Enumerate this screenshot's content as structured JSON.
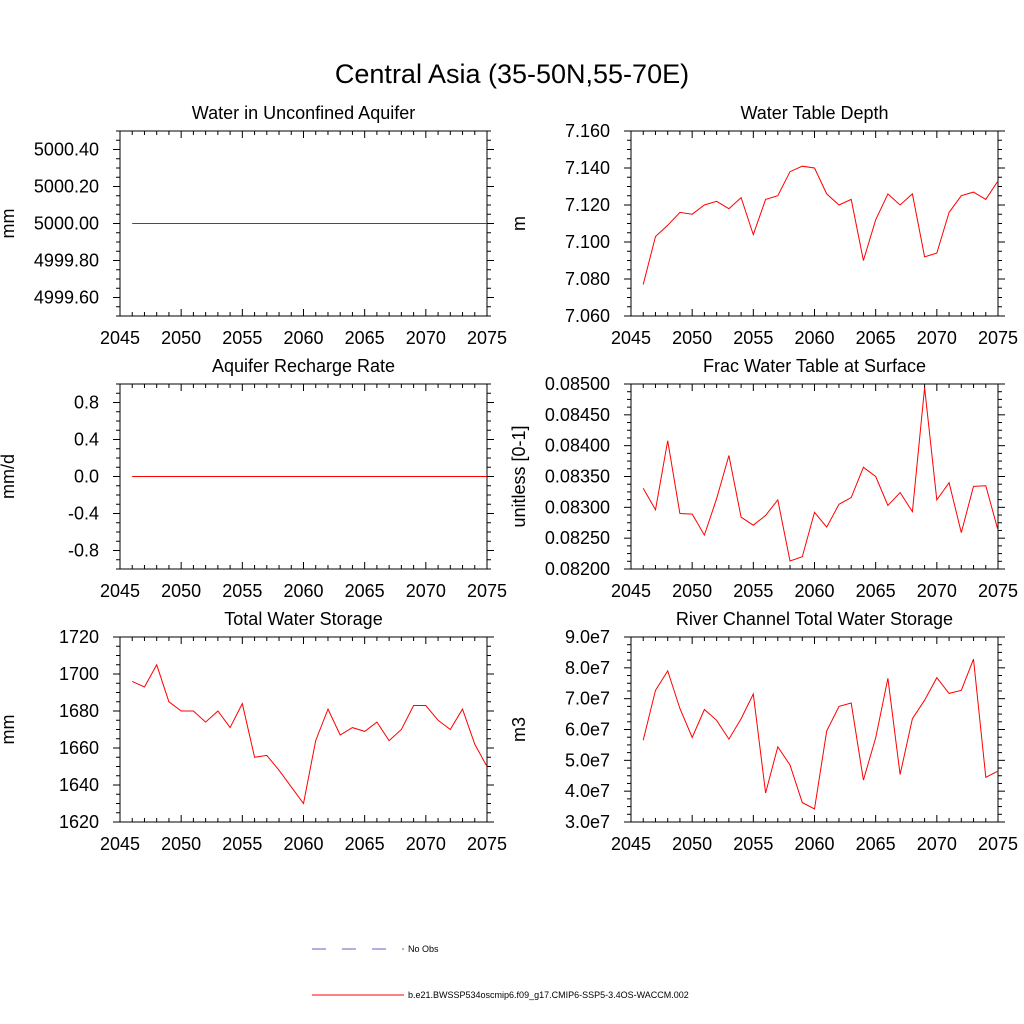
{
  "figure_title": "Central Asia (35-50N,55-70E)",
  "colors": {
    "model_line": "#ff0000",
    "obs_line": "#6060c0",
    "axis": "#000000",
    "background": "#ffffff"
  },
  "legend": {
    "obs_label": "No Obs",
    "model_label": "b.e21.BWSSP534oscmip6.f09_g17.CMIP6-SSP5-3.4OS-WACCM.002"
  },
  "chart_data": [
    {
      "type": "line",
      "title": "Water in Unconfined Aquifer",
      "ylabel": "mm",
      "xlim": [
        2045,
        2075
      ],
      "ylim": [
        4999.5,
        5000.5
      ],
      "xticks": [
        2045,
        2050,
        2055,
        2060,
        2065,
        2070,
        2075
      ],
      "yticks": [
        4999.6,
        4999.8,
        5000.0,
        5000.2,
        5000.4
      ],
      "ytick_labels": [
        "4999.60",
        "4999.80",
        "5000.00",
        "5000.20",
        "5000.40"
      ],
      "x": [
        2046,
        2075
      ],
      "series": [
        {
          "values": [
            5000.0,
            5000.0
          ]
        }
      ]
    },
    {
      "type": "line",
      "title": "Water Table Depth",
      "ylabel": "m",
      "xlim": [
        2045,
        2075
      ],
      "ylim": [
        7.06,
        7.16
      ],
      "xticks": [
        2045,
        2050,
        2055,
        2060,
        2065,
        2070,
        2075
      ],
      "yticks": [
        7.06,
        7.08,
        7.1,
        7.12,
        7.14,
        7.16
      ],
      "ytick_labels": [
        "7.060",
        "7.080",
        "7.100",
        "7.120",
        "7.140",
        "7.160"
      ],
      "x": [
        2046,
        2047,
        2048,
        2049,
        2050,
        2051,
        2052,
        2053,
        2054,
        2055,
        2056,
        2057,
        2058,
        2059,
        2060,
        2061,
        2062,
        2063,
        2064,
        2065,
        2066,
        2067,
        2068,
        2069,
        2070,
        2071,
        2072,
        2073,
        2074,
        2075
      ],
      "series": [
        {
          "values": [
            7.077,
            7.103,
            7.109,
            7.116,
            7.115,
            7.12,
            7.122,
            7.118,
            7.124,
            7.104,
            7.123,
            7.125,
            7.138,
            7.141,
            7.14,
            7.126,
            7.12,
            7.123,
            7.09,
            7.112,
            7.126,
            7.12,
            7.126,
            7.092,
            7.094,
            7.116,
            7.125,
            7.127,
            7.123,
            7.133
          ]
        }
      ]
    },
    {
      "type": "line",
      "title": "Aquifer Recharge Rate",
      "ylabel": "mm/d",
      "xlim": [
        2045,
        2075
      ],
      "ylim": [
        -1.0,
        1.0
      ],
      "xticks": [
        2045,
        2050,
        2055,
        2060,
        2065,
        2070,
        2075
      ],
      "yticks": [
        -0.8,
        -0.4,
        0.0,
        0.4,
        0.8
      ],
      "ytick_labels": [
        "-0.8",
        "-0.4",
        "0.0",
        "0.4",
        "0.8"
      ],
      "x": [
        2046,
        2075
      ],
      "series": [
        {
          "values": [
            0.0,
            0.0
          ]
        }
      ]
    },
    {
      "type": "line",
      "title": "Frac Water Table at Surface",
      "ylabel": "unitless [0-1]",
      "xlim": [
        2045,
        2075
      ],
      "ylim": [
        0.082,
        0.085
      ],
      "xticks": [
        2045,
        2050,
        2055,
        2060,
        2065,
        2070,
        2075
      ],
      "yticks": [
        0.082,
        0.0825,
        0.083,
        0.0835,
        0.084,
        0.0845,
        0.085
      ],
      "ytick_labels": [
        "0.08200",
        "0.08250",
        "0.08300",
        "0.08350",
        "0.08400",
        "0.08450",
        "0.08500"
      ],
      "x": [
        2046,
        2047,
        2048,
        2049,
        2050,
        2051,
        2052,
        2053,
        2054,
        2055,
        2056,
        2057,
        2058,
        2059,
        2060,
        2061,
        2062,
        2063,
        2064,
        2065,
        2066,
        2067,
        2068,
        2069,
        2070,
        2071,
        2072,
        2073,
        2074,
        2075
      ],
      "series": [
        {
          "values": [
            0.08331,
            0.08296,
            0.08408,
            0.0829,
            0.08289,
            0.08255,
            0.08314,
            0.08384,
            0.08284,
            0.08271,
            0.08287,
            0.08312,
            0.08213,
            0.0822,
            0.08292,
            0.08268,
            0.08305,
            0.08316,
            0.08365,
            0.0835,
            0.08303,
            0.08324,
            0.08293,
            0.08494,
            0.08312,
            0.0834,
            0.08259,
            0.08334,
            0.08335,
            0.08263
          ]
        }
      ]
    },
    {
      "type": "line",
      "title": "Total Water Storage",
      "ylabel": "mm",
      "xlim": [
        2045,
        2075
      ],
      "ylim": [
        1620,
        1720
      ],
      "xticks": [
        2045,
        2050,
        2055,
        2060,
        2065,
        2070,
        2075
      ],
      "yticks": [
        1620,
        1640,
        1660,
        1680,
        1700,
        1720
      ],
      "ytick_labels": [
        "1620",
        "1640",
        "1660",
        "1680",
        "1700",
        "1720"
      ],
      "x": [
        2046,
        2047,
        2048,
        2049,
        2050,
        2051,
        2052,
        2053,
        2054,
        2055,
        2056,
        2057,
        2058,
        2059,
        2060,
        2061,
        2062,
        2063,
        2064,
        2065,
        2066,
        2067,
        2068,
        2069,
        2070,
        2071,
        2072,
        2073,
        2074,
        2075
      ],
      "series": [
        {
          "values": [
            1696,
            1693,
            1705,
            1685,
            1680,
            1680,
            1674,
            1680,
            1671,
            1684,
            1655,
            1656,
            1648,
            1639,
            1630,
            1664,
            1681,
            1667,
            1671,
            1669,
            1674,
            1664,
            1670,
            1683,
            1683,
            1675,
            1670,
            1681,
            1662,
            1650
          ]
        }
      ]
    },
    {
      "type": "line",
      "title": "River Channel Total Water Storage",
      "ylabel": "m3",
      "xlim": [
        2045,
        2075
      ],
      "ylim": [
        30000000,
        90000000
      ],
      "xticks": [
        2045,
        2050,
        2055,
        2060,
        2065,
        2070,
        2075
      ],
      "yticks": [
        30000000,
        40000000,
        50000000,
        60000000,
        70000000,
        80000000,
        90000000
      ],
      "ytick_labels": [
        "3.0e7",
        "4.0e7",
        "5.0e7",
        "6.0e7",
        "7.0e7",
        "8.0e7",
        "9.0e7"
      ],
      "x": [
        2046,
        2047,
        2048,
        2049,
        2050,
        2051,
        2052,
        2053,
        2054,
        2055,
        2056,
        2057,
        2058,
        2059,
        2060,
        2061,
        2062,
        2063,
        2064,
        2065,
        2066,
        2067,
        2068,
        2069,
        2070,
        2071,
        2072,
        2073,
        2074,
        2075
      ],
      "series": [
        {
          "values": [
            56500000,
            72700000,
            79000000,
            66800000,
            57400000,
            66500000,
            63000000,
            56900000,
            63500000,
            71500000,
            39400000,
            54400000,
            48500000,
            36300000,
            34200000,
            59500000,
            67500000,
            68600000,
            43600000,
            57300000,
            76600000,
            45400000,
            63500000,
            69500000,
            76800000,
            71700000,
            72700000,
            82800000,
            44500000,
            46500000
          ]
        }
      ]
    }
  ]
}
